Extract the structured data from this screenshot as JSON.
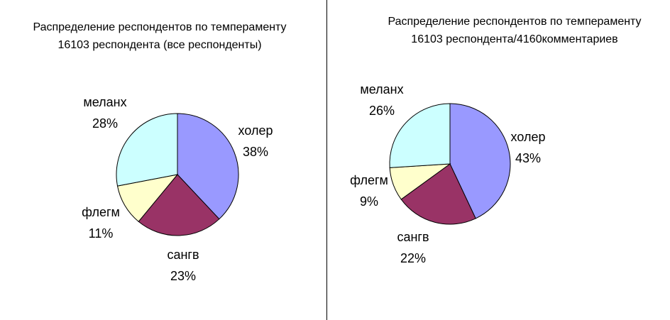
{
  "chart_data": [
    {
      "type": "pie",
      "title_line1": "Распределение респондентов по темпераменту",
      "title_line2": "16103 респондента (все респонденты)",
      "slices": [
        {
          "label": "холер",
          "value": 38,
          "value_text": "38%",
          "color": "#9999FF"
        },
        {
          "label": "сангв",
          "value": 23,
          "value_text": "23%",
          "color": "#993366"
        },
        {
          "label": "флегм",
          "value": 11,
          "value_text": "11%",
          "color": "#FFFFCC"
        },
        {
          "label": "меланх",
          "value": 28,
          "value_text": "28%",
          "color": "#CCFFFF"
        }
      ]
    },
    {
      "type": "pie",
      "title_line1": "Распределение респондентов по темпераменту",
      "title_line2": "16103 респондента/4160комментариев",
      "slices": [
        {
          "label": "холер",
          "value": 43,
          "value_text": "43%",
          "color": "#9999FF"
        },
        {
          "label": "сангв",
          "value": 22,
          "value_text": "22%",
          "color": "#993366"
        },
        {
          "label": "флегм",
          "value": 9,
          "value_text": "9%",
          "color": "#FFFFCC"
        },
        {
          "label": "меланх",
          "value": 26,
          "value_text": "26%",
          "color": "#CCFFFF"
        }
      ]
    }
  ]
}
